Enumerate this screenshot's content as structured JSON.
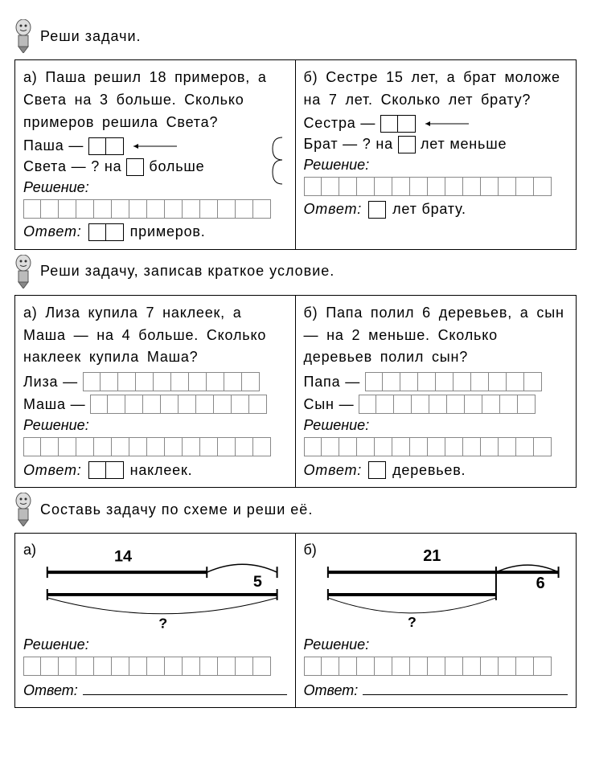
{
  "section1": {
    "header": "Реши  задачи.",
    "a": {
      "letter": "а)",
      "text": "Паша решил 18 примеров, а Света на 3 больше. Сколько примеров решила Света?",
      "row1_name": "Паша —",
      "row2_prefix": "Света — ? на",
      "row2_suffix": "больше",
      "solution_label": "Решение:",
      "answer_label": "Ответ:",
      "answer_suffix": "примеров."
    },
    "b": {
      "letter": "б)",
      "text": "Сестре 15 лет, а брат моложе на 7 лет. Сколько лет брату?",
      "row1_name": "Сестра —",
      "row2_prefix": "Брат — ? на",
      "row2_suffix": "лет меньше",
      "solution_label": "Решение:",
      "answer_label": "Ответ:",
      "answer_suffix": "лет  брату."
    }
  },
  "section2": {
    "header": "Реши  задачу,  записав  краткое  условие.",
    "a": {
      "letter": "а)",
      "text": "Лиза купила 7 наклеек, а Маша — на 4 больше. Сколько наклеек купила Маша?",
      "row1_name": "Лиза —",
      "row2_name": "Маша —",
      "solution_label": "Решение:",
      "answer_label": "Ответ:",
      "answer_suffix": "наклеек."
    },
    "b": {
      "letter": "б)",
      "text": "Папа полил 6 деревьев, а сын — на 2 меньше. Сколько деревьев полил сын?",
      "row1_name": "Папа —",
      "row2_name": "Сын —",
      "solution_label": "Решение:",
      "answer_label": "Ответ:",
      "answer_suffix": "деревьев."
    }
  },
  "section3": {
    "header": "Составь  задачу  по  схеме  и  реши  её.",
    "a": {
      "letter": "а)",
      "top_value": "14",
      "arc_value": "5",
      "unknown": "?",
      "solution_label": "Решение:",
      "answer_label": "Ответ:"
    },
    "b": {
      "letter": "б)",
      "top_value": "21",
      "arc_value": "6",
      "unknown": "?",
      "solution_label": "Решение:",
      "answer_label": "Ответ:"
    }
  },
  "style": {
    "line_dark": "#000000",
    "line_mid": "#555555",
    "cell_border": "#888888",
    "bold_stroke": 4
  }
}
